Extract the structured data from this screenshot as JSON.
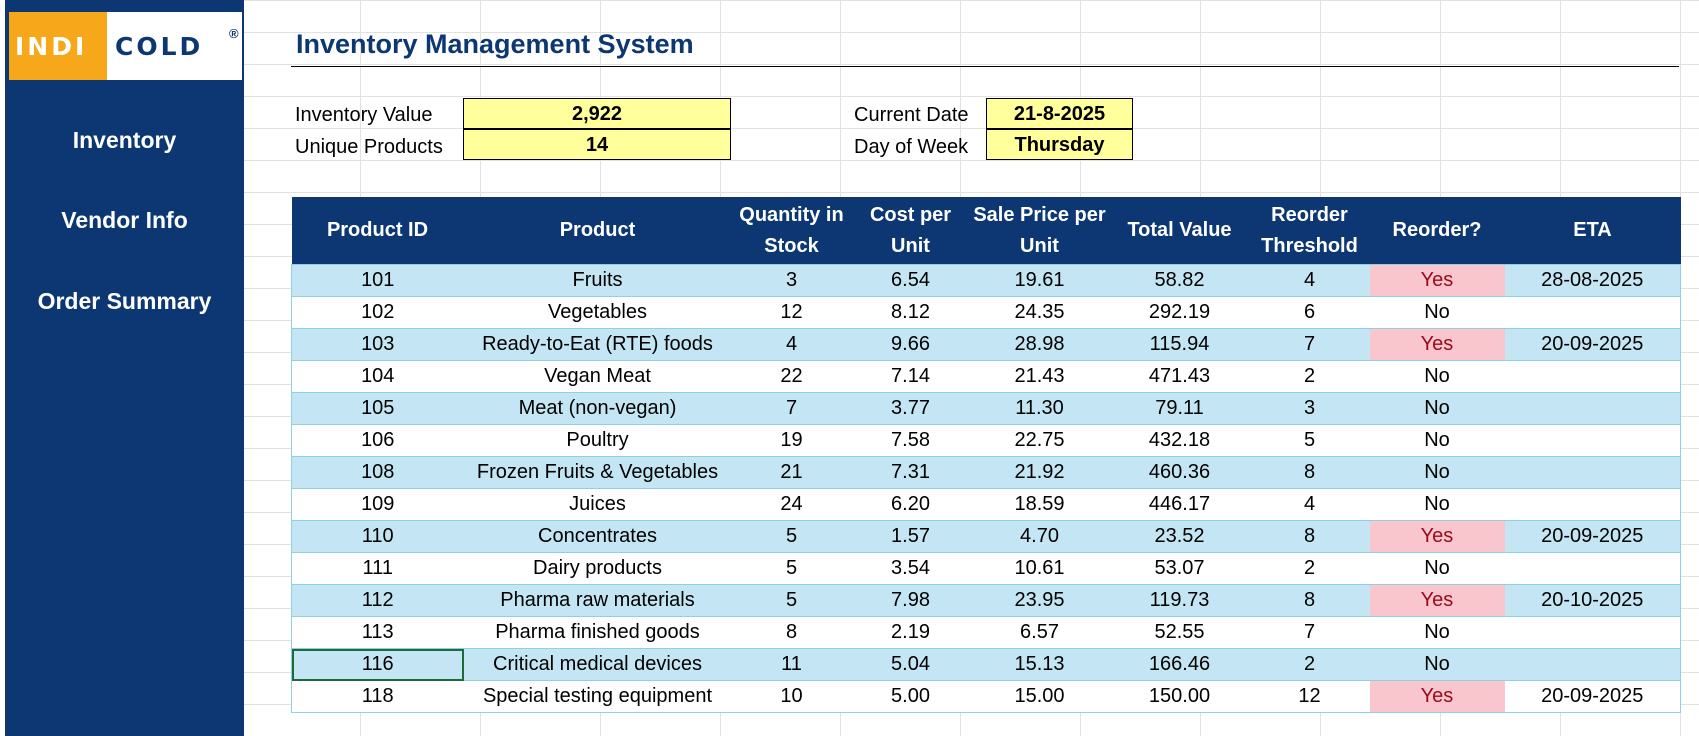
{
  "app": {
    "logo": {
      "left_text": "INDI",
      "right_text": "COLD",
      "mark": "®"
    },
    "title": "Inventory Management System"
  },
  "nav": {
    "items": [
      {
        "label": "Inventory"
      },
      {
        "label": "Vendor Info"
      },
      {
        "label": "Order Summary"
      }
    ]
  },
  "kpis": {
    "inventory_value": {
      "label": "Inventory Value",
      "value": "2,922"
    },
    "unique_products": {
      "label": "Unique Products",
      "value": "14"
    },
    "current_date": {
      "label": "Current Date",
      "value": "21-8-2025"
    },
    "day_of_week": {
      "label": "Day of Week",
      "value": "Thursday"
    }
  },
  "table": {
    "headers": [
      "Product ID",
      "Product",
      "Quantity in Stock",
      "Cost per Unit",
      "Sale Price per Unit",
      "Total Value",
      "Reorder Threshold",
      "Reorder?",
      "ETA"
    ],
    "rows": [
      [
        "101",
        "Fruits",
        "3",
        "6.54",
        "19.61",
        "58.82",
        "4",
        "Yes",
        "28-08-2025"
      ],
      [
        "102",
        "Vegetables",
        "12",
        "8.12",
        "24.35",
        "292.19",
        "6",
        "No",
        ""
      ],
      [
        "103",
        "Ready-to-Eat (RTE) foods",
        "4",
        "9.66",
        "28.98",
        "115.94",
        "7",
        "Yes",
        "20-09-2025"
      ],
      [
        "104",
        "Vegan Meat",
        "22",
        "7.14",
        "21.43",
        "471.43",
        "2",
        "No",
        ""
      ],
      [
        "105",
        "Meat (non-vegan)",
        "7",
        "3.77",
        "11.30",
        "79.11",
        "3",
        "No",
        ""
      ],
      [
        "106",
        "Poultry",
        "19",
        "7.58",
        "22.75",
        "432.18",
        "5",
        "No",
        ""
      ],
      [
        "108",
        "Frozen Fruits & Vegetables",
        "21",
        "7.31",
        "21.92",
        "460.36",
        "8",
        "No",
        ""
      ],
      [
        "109",
        "Juices",
        "24",
        "6.20",
        "18.59",
        "446.17",
        "4",
        "No",
        ""
      ],
      [
        "110",
        "Concentrates",
        "5",
        "1.57",
        "4.70",
        "23.52",
        "8",
        "Yes",
        "20-09-2025"
      ],
      [
        "111",
        "Dairy products",
        "5",
        "3.54",
        "10.61",
        "53.07",
        "2",
        "No",
        ""
      ],
      [
        "112",
        "Pharma raw materials",
        "5",
        "7.98",
        "23.95",
        "119.73",
        "8",
        "Yes",
        "20-10-2025"
      ],
      [
        "113",
        "Pharma finished goods",
        "8",
        "2.19",
        "6.57",
        "52.55",
        "7",
        "No",
        ""
      ],
      [
        "116",
        "Critical medical devices",
        "11",
        "5.04",
        "15.13",
        "166.46",
        "2",
        "No",
        ""
      ],
      [
        "118",
        "Special testing equipment",
        "10",
        "5.00",
        "15.00",
        "150.00",
        "12",
        "Yes",
        "20-09-2025"
      ]
    ]
  },
  "colors": {
    "brand_navy": "#0c3773",
    "brand_orange": "#f6a71a",
    "kpi_yellow": "#ffff9c",
    "row_band": "#c4e6f4",
    "reorder_yes_bg": "#f8c6cc",
    "reorder_yes_text": "#9b0a1a"
  }
}
